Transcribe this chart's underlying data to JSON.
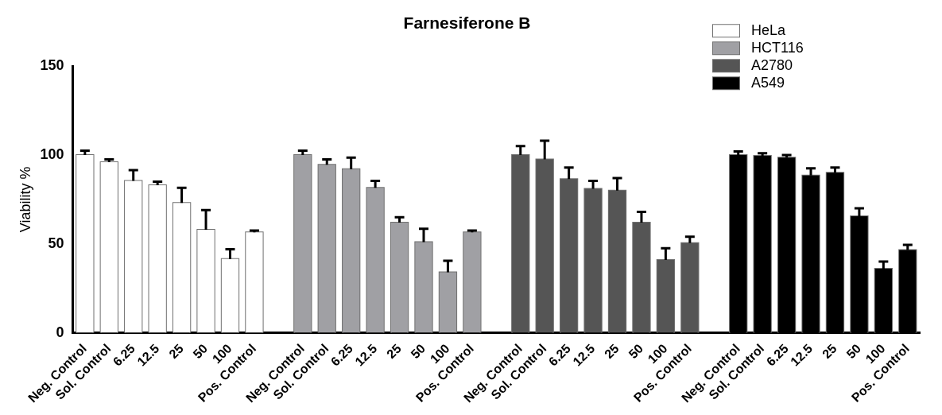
{
  "chart_data": {
    "type": "bar",
    "title": "Farnesiferone B",
    "ylabel": "Viability %",
    "categories": [
      "Neg. Control",
      "Sol. Control",
      "6.25",
      "12.5",
      "25",
      "50",
      "100",
      "Pos. Control",
      null,
      "Neg. Control",
      "Sol. Control",
      "6.25",
      "12.5",
      "25",
      "50",
      "100",
      "Pos. Control",
      null,
      "Neg. Control",
      "Sol. Control",
      "6.25",
      "12.5",
      "25",
      "50",
      "100",
      "Pos. Control",
      null,
      "Neg. Control",
      "Sol. Control",
      "6.25",
      "12.5",
      "25",
      "50",
      "100",
      "Pos. Control"
    ],
    "series": [
      {
        "name": "HeLa",
        "color": "#ffffff",
        "values": [
          100,
          96,
          85.5,
          83,
          73,
          58,
          41.5,
          56.5,
          null,
          null,
          null,
          null,
          null,
          null,
          null,
          null,
          null,
          null,
          null,
          null,
          null,
          null,
          null,
          null,
          null,
          null,
          null,
          null,
          null,
          null,
          null,
          null,
          null,
          null,
          null
        ],
        "errors": [
          2.5,
          1.5,
          6,
          2,
          8.5,
          11,
          5.5,
          1,
          null,
          null,
          null,
          null,
          null,
          null,
          null,
          null,
          null,
          null,
          null,
          null,
          null,
          null,
          null,
          null,
          null,
          null,
          null,
          null,
          null,
          null,
          null,
          null,
          null,
          null,
          null
        ]
      },
      {
        "name": "HCT116",
        "color": "#a0a0a4",
        "values": [
          null,
          null,
          null,
          null,
          null,
          null,
          null,
          null,
          null,
          100,
          94.5,
          92,
          81.5,
          62,
          51,
          34,
          56.5,
          null,
          null,
          null,
          null,
          null,
          null,
          null,
          null,
          null,
          null,
          null,
          null,
          null,
          null,
          null,
          null,
          null,
          null
        ],
        "errors": [
          null,
          null,
          null,
          null,
          null,
          null,
          null,
          null,
          null,
          2.5,
          3,
          6.5,
          4,
          3,
          7.5,
          6.5,
          1,
          null,
          null,
          null,
          null,
          null,
          null,
          null,
          null,
          null,
          null,
          null,
          null,
          null,
          null,
          null,
          null,
          null,
          null
        ]
      },
      {
        "name": "A2780",
        "color": "#555555",
        "values": [
          null,
          null,
          null,
          null,
          null,
          null,
          null,
          null,
          null,
          null,
          null,
          null,
          null,
          null,
          null,
          null,
          null,
          null,
          100,
          97.5,
          86.5,
          81,
          80,
          62,
          41,
          50.5,
          null,
          null,
          null,
          null,
          null,
          null,
          null,
          null,
          null
        ],
        "errors": [
          null,
          null,
          null,
          null,
          null,
          null,
          null,
          null,
          null,
          null,
          null,
          null,
          null,
          null,
          null,
          null,
          null,
          null,
          5,
          10.5,
          6.5,
          4.5,
          7,
          6,
          6.5,
          3.5,
          null,
          null,
          null,
          null,
          null,
          null,
          null,
          null,
          null
        ]
      },
      {
        "name": "A549",
        "color": "#000000",
        "values": [
          null,
          null,
          null,
          null,
          null,
          null,
          null,
          null,
          null,
          null,
          null,
          null,
          null,
          null,
          null,
          null,
          null,
          null,
          null,
          null,
          null,
          null,
          null,
          null,
          null,
          null,
          null,
          100,
          99.5,
          98.5,
          88.5,
          90,
          65.5,
          36,
          46.5
        ],
        "errors": [
          null,
          null,
          null,
          null,
          null,
          null,
          null,
          null,
          null,
          null,
          null,
          null,
          null,
          null,
          null,
          null,
          null,
          null,
          null,
          null,
          null,
          null,
          null,
          null,
          null,
          null,
          null,
          2,
          1.5,
          1.5,
          4,
          3,
          4.5,
          4,
          3
        ]
      }
    ],
    "ylim": [
      0,
      150
    ],
    "yticks": [
      0,
      50,
      100,
      150
    ],
    "grid": false,
    "legend": "top right"
  }
}
